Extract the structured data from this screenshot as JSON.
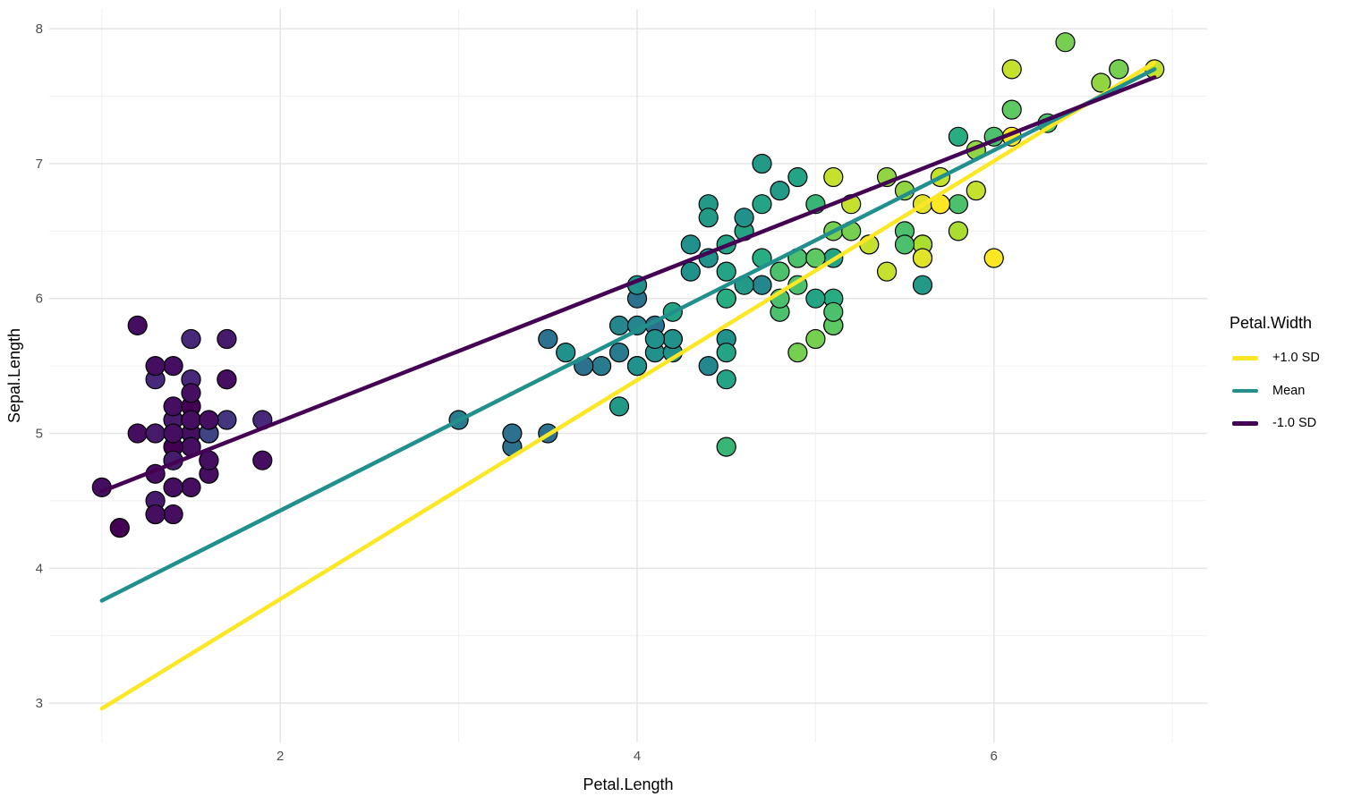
{
  "chart_data": {
    "type": "scatter",
    "title": "",
    "xlabel": "Petal.Length",
    "ylabel": "Sepal.Length",
    "x_domain": [
      0.705,
      7.195
    ],
    "y_domain": [
      2.709,
      8.147
    ],
    "x_ticks": {
      "major": [
        2,
        4,
        6
      ],
      "minor": [
        1,
        3,
        5,
        7
      ]
    },
    "y_ticks": {
      "major": [
        3,
        4,
        5,
        6,
        7,
        8
      ],
      "minor": [
        3.5,
        4.5,
        5.5,
        6.5,
        7.5
      ]
    },
    "grid": "on",
    "legend_position": "right",
    "colors": {
      "background": "#ffffff",
      "grid_major": "#e5e5e5",
      "grid_minor": "#f0f0f0",
      "tick_label": "#4d4d4d",
      "axis_title": "#000000",
      "point_stroke": "#000000"
    },
    "point_radius": 10.5,
    "point_stroke_width": 1.2,
    "color_scale": {
      "name": "viridis",
      "variable": "Petal.Width",
      "domain": [
        0.1,
        2.5
      ],
      "stops": [
        "#440154",
        "#482878",
        "#3B528B",
        "#2C728E",
        "#21918C",
        "#27AD81",
        "#5EC962",
        "#AADC32",
        "#FDE725"
      ]
    },
    "points_fields": [
      "Petal.Length",
      "Sepal.Length",
      "Petal.Width"
    ],
    "points": [
      [
        1.4,
        5.1,
        0.2
      ],
      [
        1.4,
        4.9,
        0.2
      ],
      [
        1.3,
        4.7,
        0.2
      ],
      [
        1.5,
        4.6,
        0.2
      ],
      [
        1.4,
        5.0,
        0.2
      ],
      [
        1.7,
        5.4,
        0.4
      ],
      [
        1.4,
        4.6,
        0.3
      ],
      [
        1.5,
        5.0,
        0.2
      ],
      [
        1.4,
        4.4,
        0.2
      ],
      [
        1.5,
        4.9,
        0.1
      ],
      [
        1.5,
        5.4,
        0.2
      ],
      [
        1.6,
        4.8,
        0.2
      ],
      [
        1.4,
        4.8,
        0.1
      ],
      [
        1.1,
        4.3,
        0.1
      ],
      [
        1.2,
        5.8,
        0.2
      ],
      [
        1.5,
        5.7,
        0.4
      ],
      [
        1.3,
        5.4,
        0.4
      ],
      [
        1.4,
        5.1,
        0.3
      ],
      [
        1.7,
        5.7,
        0.3
      ],
      [
        1.5,
        5.1,
        0.3
      ],
      [
        1.7,
        5.4,
        0.2
      ],
      [
        1.5,
        5.1,
        0.4
      ],
      [
        1.0,
        4.6,
        0.2
      ],
      [
        1.7,
        5.1,
        0.5
      ],
      [
        1.9,
        4.8,
        0.2
      ],
      [
        1.6,
        5.0,
        0.2
      ],
      [
        1.6,
        5.0,
        0.4
      ],
      [
        1.5,
        5.2,
        0.2
      ],
      [
        1.4,
        5.2,
        0.2
      ],
      [
        1.6,
        4.7,
        0.2
      ],
      [
        1.6,
        4.8,
        0.2
      ],
      [
        1.5,
        5.4,
        0.4
      ],
      [
        1.5,
        5.2,
        0.1
      ],
      [
        1.4,
        5.5,
        0.2
      ],
      [
        1.5,
        4.9,
        0.2
      ],
      [
        1.2,
        5.0,
        0.2
      ],
      [
        1.3,
        5.5,
        0.2
      ],
      [
        1.4,
        4.9,
        0.1
      ],
      [
        1.3,
        4.4,
        0.2
      ],
      [
        1.5,
        5.1,
        0.2
      ],
      [
        1.3,
        5.0,
        0.3
      ],
      [
        1.3,
        4.5,
        0.3
      ],
      [
        1.3,
        4.4,
        0.2
      ],
      [
        1.6,
        5.0,
        0.6
      ],
      [
        1.9,
        5.1,
        0.4
      ],
      [
        1.4,
        4.8,
        0.3
      ],
      [
        1.6,
        5.1,
        0.2
      ],
      [
        1.4,
        4.6,
        0.2
      ],
      [
        1.5,
        5.3,
        0.2
      ],
      [
        1.4,
        5.0,
        0.2
      ],
      [
        4.7,
        7.0,
        1.4
      ],
      [
        4.5,
        6.4,
        1.5
      ],
      [
        4.9,
        6.9,
        1.5
      ],
      [
        4.0,
        5.5,
        1.3
      ],
      [
        4.6,
        6.5,
        1.5
      ],
      [
        4.5,
        5.7,
        1.3
      ],
      [
        4.7,
        6.3,
        1.6
      ],
      [
        3.3,
        4.9,
        1.0
      ],
      [
        4.6,
        6.6,
        1.3
      ],
      [
        3.9,
        5.2,
        1.4
      ],
      [
        3.5,
        5.0,
        1.0
      ],
      [
        4.2,
        5.9,
        1.5
      ],
      [
        4.0,
        6.0,
        1.0
      ],
      [
        4.7,
        6.1,
        1.4
      ],
      [
        3.6,
        5.6,
        1.3
      ],
      [
        4.4,
        6.7,
        1.4
      ],
      [
        4.5,
        5.6,
        1.5
      ],
      [
        4.1,
        5.8,
        1.0
      ],
      [
        4.5,
        6.2,
        1.5
      ],
      [
        3.9,
        5.6,
        1.1
      ],
      [
        4.8,
        5.9,
        1.8
      ],
      [
        4.0,
        6.1,
        1.3
      ],
      [
        4.9,
        6.3,
        1.5
      ],
      [
        4.7,
        6.1,
        1.2
      ],
      [
        4.3,
        6.4,
        1.3
      ],
      [
        4.4,
        6.6,
        1.4
      ],
      [
        4.8,
        6.8,
        1.4
      ],
      [
        5.0,
        6.7,
        1.7
      ],
      [
        4.5,
        6.0,
        1.5
      ],
      [
        3.5,
        5.7,
        1.0
      ],
      [
        3.8,
        5.5,
        1.1
      ],
      [
        3.7,
        5.5,
        1.0
      ],
      [
        3.9,
        5.8,
        1.2
      ],
      [
        5.1,
        6.0,
        1.6
      ],
      [
        4.5,
        5.4,
        1.5
      ],
      [
        4.5,
        6.0,
        1.6
      ],
      [
        4.7,
        6.7,
        1.5
      ],
      [
        4.4,
        6.3,
        1.3
      ],
      [
        4.1,
        5.6,
        1.3
      ],
      [
        4.0,
        5.5,
        1.3
      ],
      [
        4.4,
        5.5,
        1.2
      ],
      [
        4.6,
        6.1,
        1.4
      ],
      [
        4.0,
        5.8,
        1.2
      ],
      [
        3.3,
        5.0,
        1.0
      ],
      [
        4.2,
        5.6,
        1.3
      ],
      [
        4.2,
        5.7,
        1.2
      ],
      [
        4.2,
        5.7,
        1.3
      ],
      [
        4.3,
        6.2,
        1.3
      ],
      [
        3.0,
        5.1,
        1.1
      ],
      [
        4.1,
        5.7,
        1.3
      ],
      [
        6.0,
        6.3,
        2.5
      ],
      [
        5.1,
        5.8,
        1.9
      ],
      [
        5.9,
        7.1,
        2.1
      ],
      [
        5.6,
        6.3,
        1.8
      ],
      [
        5.8,
        6.5,
        2.2
      ],
      [
        6.6,
        7.6,
        2.1
      ],
      [
        4.5,
        4.9,
        1.7
      ],
      [
        6.3,
        7.3,
        1.8
      ],
      [
        5.8,
        6.7,
        1.8
      ],
      [
        6.1,
        7.2,
        2.5
      ],
      [
        5.1,
        6.5,
        2.0
      ],
      [
        5.3,
        6.4,
        1.9
      ],
      [
        5.5,
        6.8,
        2.1
      ],
      [
        5.0,
        5.7,
        2.0
      ],
      [
        5.1,
        5.8,
        2.4
      ],
      [
        5.3,
        6.4,
        2.3
      ],
      [
        5.5,
        6.5,
        1.8
      ],
      [
        6.7,
        7.7,
        2.2
      ],
      [
        6.9,
        7.7,
        2.3
      ],
      [
        5.0,
        6.0,
        1.5
      ],
      [
        5.7,
        6.9,
        2.3
      ],
      [
        4.9,
        5.6,
        2.0
      ],
      [
        6.7,
        7.7,
        2.0
      ],
      [
        4.9,
        6.3,
        1.8
      ],
      [
        5.7,
        6.7,
        2.1
      ],
      [
        6.0,
        7.2,
        1.8
      ],
      [
        4.8,
        6.2,
        1.8
      ],
      [
        4.9,
        6.1,
        1.8
      ],
      [
        5.6,
        6.4,
        2.1
      ],
      [
        5.8,
        7.2,
        1.6
      ],
      [
        6.1,
        7.4,
        1.9
      ],
      [
        6.4,
        7.9,
        2.0
      ],
      [
        5.6,
        6.4,
        2.2
      ],
      [
        5.1,
        6.3,
        1.5
      ],
      [
        5.6,
        6.1,
        1.4
      ],
      [
        6.1,
        7.7,
        2.3
      ],
      [
        5.6,
        6.3,
        2.4
      ],
      [
        5.5,
        6.4,
        1.8
      ],
      [
        4.8,
        6.0,
        1.8
      ],
      [
        5.4,
        6.9,
        2.1
      ],
      [
        5.6,
        6.7,
        2.4
      ],
      [
        5.1,
        6.9,
        2.3
      ],
      [
        5.1,
        5.8,
        1.9
      ],
      [
        5.9,
        6.8,
        2.3
      ],
      [
        5.7,
        6.7,
        2.5
      ],
      [
        5.2,
        6.7,
        2.3
      ],
      [
        5.0,
        6.3,
        1.9
      ],
      [
        5.2,
        6.5,
        2.0
      ],
      [
        5.4,
        6.2,
        2.3
      ],
      [
        5.1,
        5.9,
        1.8
      ]
    ],
    "lines": [
      {
        "label": "+1.0 SD",
        "color": "#FDE725",
        "x1": 1.0,
        "y1": 2.96,
        "x2": 6.9,
        "y2": 7.75,
        "width": 4.5
      },
      {
        "label": "Mean",
        "color": "#21908C",
        "x1": 1.0,
        "y1": 3.76,
        "x2": 6.9,
        "y2": 7.7,
        "width": 4.5
      },
      {
        "label": "-1.0 SD",
        "color": "#440154",
        "x1": 1.0,
        "y1": 4.57,
        "x2": 6.9,
        "y2": 7.64,
        "width": 4.5
      }
    ],
    "legend": {
      "title": "Petal.Width",
      "entries": [
        {
          "label": "+1.0 SD",
          "color": "#FDE725"
        },
        {
          "label": "Mean",
          "color": "#21908C"
        },
        {
          "label": "-1.0 SD",
          "color": "#440154"
        }
      ]
    }
  }
}
